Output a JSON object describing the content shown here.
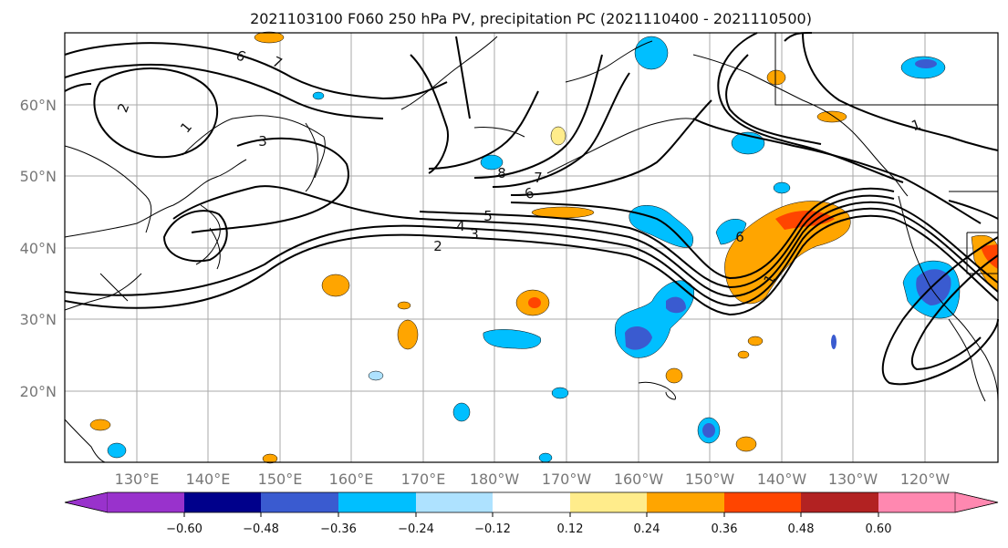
{
  "title": "2021103100 F060 250 hPa PV, precipitation PC (2021110400 - 2021110500)",
  "map": {
    "lon_labels": [
      "130°E",
      "140°E",
      "150°E",
      "160°E",
      "170°E",
      "180°W",
      "170°W",
      "160°W",
      "150°W",
      "140°W",
      "130°W",
      "120°W"
    ],
    "lat_labels": [
      "60°N",
      "50°N",
      "40°N",
      "30°N",
      "20°N"
    ],
    "grid": true
  },
  "pv_contour_labels": [
    "6",
    "7",
    "2",
    "1",
    "3",
    "8",
    "7",
    "6",
    "5",
    "4",
    "3",
    "2",
    "1",
    "6",
    "1"
  ],
  "colorbar": {
    "colors": [
      "#9932cc",
      "#00008b",
      "#3a5bd0",
      "#00bfff",
      "#aee2ff",
      "#ffffff",
      "#ffec8b",
      "#ffa500",
      "#ff4500",
      "#b22222",
      "#ff88b0"
    ],
    "tick_labels": [
      "−0.60",
      "−0.48",
      "−0.36",
      "−0.24",
      "−0.12",
      "0.12",
      "0.24",
      "0.36",
      "0.48",
      "0.60"
    ]
  },
  "colors": {
    "orange": "#ffa500",
    "red": "#ff4500",
    "yellow": "#ffec8b",
    "light_blue": "#aee2ff",
    "blue": "#00bfff",
    "dark_blue": "#3a5bd0",
    "contour": "#000000",
    "coastline": "#000000",
    "grid": "#aaaaaa"
  }
}
